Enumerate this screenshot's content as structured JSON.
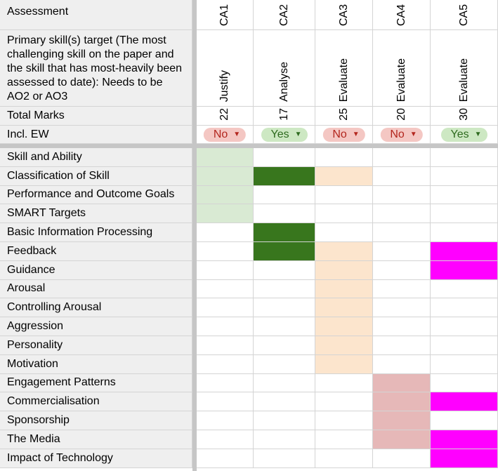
{
  "header": {
    "assessment_label": "Assessment",
    "primary_skill_label": "Primary skill(s) target (The most challenging skill on the paper and the skill that has most-heavily been assessed to date): Needs to be AO2 or AO3",
    "total_marks_label": "Total Marks",
    "incl_ew_label": "Incl. EW"
  },
  "columns": [
    {
      "name": "CA1",
      "skill": "Justify",
      "marks": "22",
      "ew": "No"
    },
    {
      "name": "CA2",
      "skill": "Analyse",
      "marks": "17",
      "ew": "Yes"
    },
    {
      "name": "CA3",
      "skill": "Evaluate",
      "marks": "25",
      "ew": "No"
    },
    {
      "name": "CA4",
      "skill": "Evaluate",
      "marks": "20",
      "ew": "No"
    },
    {
      "name": "CA5",
      "skill": "Evaluate",
      "marks": "30",
      "ew": "Yes"
    }
  ],
  "topics": [
    "Skill and Ability",
    "Classification of Skill",
    "Performance and Outcome Goals",
    "SMART Targets",
    "Basic Information Processing",
    "Feedback",
    "Guidance",
    "Arousal",
    "Controlling Arousal",
    "Aggression",
    "Personality",
    "Motivation",
    "Engagement Patterns",
    "Commercialisation",
    "Sponsorship",
    "The Media",
    "Impact of Technology"
  ],
  "colors": {
    "chip_no_bg": "#f4c7c3",
    "chip_no_text": "#b3261e",
    "chip_yes_bg": "#cde8c3",
    "chip_yes_text": "#2e6b1f",
    "light_green": "#d9ead3",
    "dark_green": "#38761d",
    "peach": "#fce5cd",
    "pink": "#e6b8b8",
    "magenta": "#ff00ff"
  },
  "fills": [
    [
      "light_green",
      "",
      "",
      "",
      ""
    ],
    [
      "light_green",
      "dark_green",
      "peach",
      "",
      ""
    ],
    [
      "light_green",
      "",
      "",
      "",
      ""
    ],
    [
      "light_green",
      "",
      "",
      "",
      ""
    ],
    [
      "",
      "dark_green",
      "",
      "",
      ""
    ],
    [
      "",
      "dark_green",
      "peach",
      "",
      "magenta"
    ],
    [
      "",
      "",
      "peach",
      "",
      "magenta"
    ],
    [
      "",
      "",
      "peach",
      "",
      ""
    ],
    [
      "",
      "",
      "peach",
      "",
      ""
    ],
    [
      "",
      "",
      "peach",
      "",
      ""
    ],
    [
      "",
      "",
      "peach",
      "",
      ""
    ],
    [
      "",
      "",
      "peach",
      "",
      ""
    ],
    [
      "",
      "",
      "",
      "pink",
      ""
    ],
    [
      "",
      "",
      "",
      "pink",
      "magenta"
    ],
    [
      "",
      "",
      "",
      "pink",
      ""
    ],
    [
      "",
      "",
      "",
      "pink",
      "magenta"
    ],
    [
      "",
      "",
      "",
      "",
      "magenta"
    ]
  ]
}
